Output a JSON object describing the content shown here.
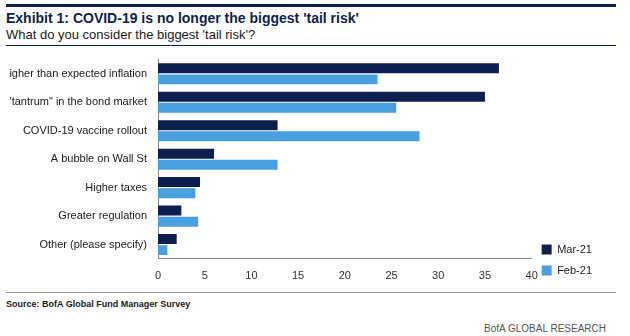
{
  "chart_data": {
    "type": "bar",
    "orientation": "horizontal",
    "title": "Exhibit 1: COVID-19 is no longer the biggest 'tail risk'",
    "subtitle": "What do you consider the biggest 'tail risk'?",
    "source": "Source: BofA Global Fund Manager Survey",
    "footer": "BofA GLOBAL RESEARCH",
    "categories": [
      "Higher than expected inflation",
      "A \"tantrum\" in the bond market",
      "COVID-19 vaccine rollout",
      "A bubble on Wall St",
      "Higher taxes",
      "Greater regulation",
      "Other (please specify)"
    ],
    "series": [
      {
        "name": "Mar-21",
        "color": "#0d1f4f",
        "values": [
          36.5,
          35,
          12.8,
          6,
          4.5,
          2.5,
          2
        ]
      },
      {
        "name": "Feb-21",
        "color": "#4a9fe0",
        "values": [
          23.5,
          25.5,
          28,
          12.8,
          4,
          4.3,
          1
        ]
      }
    ],
    "ylim": [
      0,
      40
    ],
    "yticks": [
      0,
      5,
      10,
      15,
      20,
      25,
      30,
      35,
      40
    ],
    "grid": false,
    "legend": "lower right",
    "data_labels": false
  }
}
